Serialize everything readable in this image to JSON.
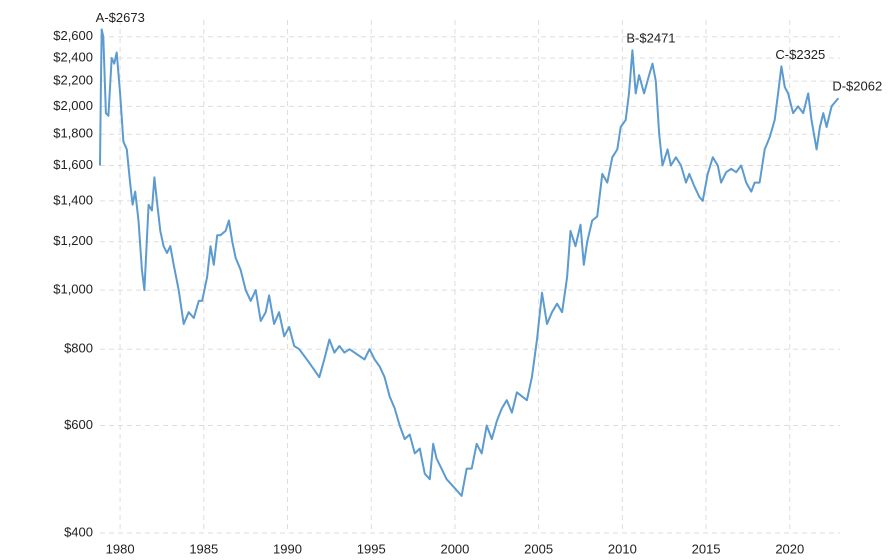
{
  "chart_data": {
    "type": "line",
    "log_scale": true,
    "grid": true,
    "xlim": [
      1978.8,
      2023.0
    ],
    "xticks": [
      1980,
      1985,
      1990,
      1995,
      2000,
      2005,
      2010,
      2015,
      2020
    ],
    "ylim": [
      400,
      2770
    ],
    "yticks": [
      {
        "value": 400,
        "label": "$400"
      },
      {
        "value": 600,
        "label": "$600"
      },
      {
        "value": 800,
        "label": "$800"
      },
      {
        "value": 1000,
        "label": "$1,000"
      },
      {
        "value": 1200,
        "label": "$1,200"
      },
      {
        "value": 1400,
        "label": "$1,400"
      },
      {
        "value": 1600,
        "label": "$1,600"
      },
      {
        "value": 1800,
        "label": "$1,800"
      },
      {
        "value": 2000,
        "label": "$2,000"
      },
      {
        "value": 2200,
        "label": "$2,200"
      },
      {
        "value": 2400,
        "label": "$2,400"
      },
      {
        "value": 2600,
        "label": "$2,600"
      }
    ],
    "x": [
      1978.8,
      1978.85,
      1978.9,
      1979.0,
      1979.15,
      1979.3,
      1979.5,
      1979.65,
      1979.8,
      1980.0,
      1980.2,
      1980.4,
      1980.6,
      1980.75,
      1980.9,
      1981.1,
      1981.3,
      1981.45,
      1981.7,
      1981.9,
      1982.05,
      1982.2,
      1982.4,
      1982.6,
      1982.8,
      1983.0,
      1983.2,
      1983.5,
      1983.8,
      1984.1,
      1984.4,
      1984.7,
      1984.9,
      1985.2,
      1985.4,
      1985.6,
      1985.8,
      1986.0,
      1986.3,
      1986.5,
      1986.7,
      1986.9,
      1987.2,
      1987.5,
      1987.8,
      1988.1,
      1988.4,
      1988.7,
      1988.9,
      1989.2,
      1989.5,
      1989.8,
      1990.1,
      1990.4,
      1990.7,
      1991.0,
      1991.3,
      1991.6,
      1991.9,
      1992.2,
      1992.5,
      1992.8,
      1993.1,
      1993.4,
      1993.7,
      1994.0,
      1994.3,
      1994.6,
      1994.9,
      1995.2,
      1995.5,
      1995.8,
      1996.1,
      1996.4,
      1996.7,
      1997.0,
      1997.3,
      1997.6,
      1997.9,
      1998.2,
      1998.5,
      1998.7,
      1998.9,
      1999.2,
      1999.5,
      1999.8,
      2000.1,
      2000.4,
      2000.7,
      2001.0,
      2001.3,
      2001.6,
      2001.9,
      2002.2,
      2002.5,
      2002.8,
      2003.1,
      2003.4,
      2003.7,
      2004.0,
      2004.3,
      2004.6,
      2004.9,
      2005.2,
      2005.5,
      2005.8,
      2006.1,
      2006.4,
      2006.7,
      2006.9,
      2007.2,
      2007.5,
      2007.7,
      2007.9,
      2008.2,
      2008.5,
      2008.8,
      2009.1,
      2009.4,
      2009.7,
      2009.9,
      2010.2,
      2010.4,
      2010.6,
      2010.8,
      2011.0,
      2011.3,
      2011.6,
      2011.8,
      2012.0,
      2012.2,
      2012.4,
      2012.7,
      2012.9,
      2013.2,
      2013.5,
      2013.8,
      2014.0,
      2014.3,
      2014.6,
      2014.8,
      2015.1,
      2015.4,
      2015.7,
      2015.9,
      2016.2,
      2016.5,
      2016.8,
      2017.1,
      2017.4,
      2017.7,
      2017.9,
      2018.2,
      2018.5,
      2018.8,
      2019.1,
      2019.3,
      2019.5,
      2019.7,
      2019.9,
      2020.2,
      2020.5,
      2020.8,
      2021.1,
      2021.3,
      2021.6,
      2021.8,
      2022.0,
      2022.2,
      2022.5,
      2022.9
    ],
    "series": [
      {
        "color": "#5b9bd0",
        "values": [
          1600,
          2100,
          2673,
          2600,
          1950,
          1930,
          2400,
          2350,
          2450,
          2100,
          1750,
          1700,
          1500,
          1380,
          1450,
          1300,
          1080,
          1000,
          1380,
          1350,
          1530,
          1400,
          1250,
          1180,
          1150,
          1180,
          1100,
          1000,
          880,
          920,
          900,
          960,
          960,
          1050,
          1180,
          1100,
          1230,
          1230,
          1250,
          1300,
          1200,
          1130,
          1080,
          1000,
          960,
          1000,
          890,
          920,
          980,
          880,
          920,
          840,
          870,
          810,
          800,
          780,
          760,
          740,
          720,
          770,
          830,
          790,
          810,
          790,
          800,
          790,
          780,
          770,
          800,
          770,
          750,
          720,
          670,
          640,
          600,
          570,
          580,
          540,
          550,
          500,
          490,
          560,
          530,
          510,
          490,
          480,
          470,
          460,
          510,
          510,
          560,
          540,
          600,
          570,
          610,
          640,
          660,
          630,
          680,
          670,
          660,
          720,
          830,
          990,
          880,
          920,
          950,
          920,
          1050,
          1250,
          1180,
          1280,
          1100,
          1200,
          1300,
          1320,
          1550,
          1500,
          1650,
          1700,
          1850,
          1900,
          2100,
          2471,
          2100,
          2250,
          2100,
          2250,
          2350,
          2200,
          1800,
          1600,
          1700,
          1600,
          1650,
          1600,
          1500,
          1550,
          1480,
          1420,
          1400,
          1550,
          1650,
          1600,
          1500,
          1560,
          1580,
          1560,
          1600,
          1500,
          1450,
          1500,
          1500,
          1700,
          1780,
          1900,
          2100,
          2325,
          2150,
          2100,
          1950,
          2000,
          1950,
          2100,
          1900,
          1700,
          1850,
          1950,
          1850,
          2000,
          2062
        ]
      }
    ],
    "annotations": [
      {
        "label": "A-$2673",
        "x": 1978.9,
        "y": 2673
      },
      {
        "label": "B-$2471",
        "x": 2010.6,
        "y": 2471
      },
      {
        "label": "C-$2325",
        "x": 2019.5,
        "y": 2325
      },
      {
        "label": "D-$2062",
        "x": 2022.9,
        "y": 2062
      }
    ]
  }
}
